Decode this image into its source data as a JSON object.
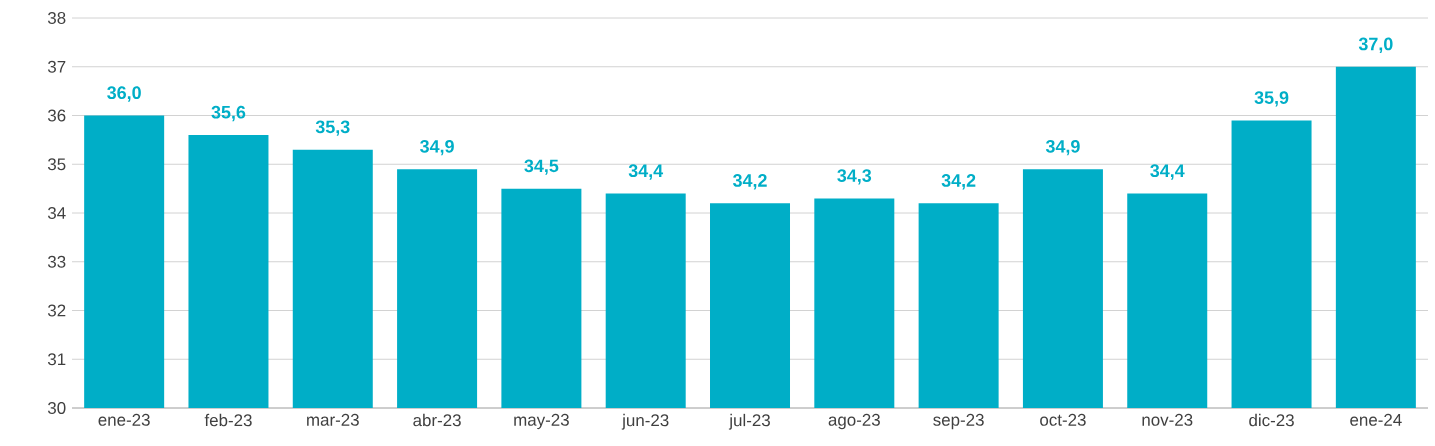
{
  "chart_data": {
    "type": "bar",
    "categories": [
      "ene-23",
      "feb-23",
      "mar-23",
      "abr-23",
      "may-23",
      "jun-23",
      "jul-23",
      "ago-23",
      "sep-23",
      "oct-23",
      "nov-23",
      "dic-23",
      "ene-24"
    ],
    "values": [
      36.0,
      35.6,
      35.3,
      34.9,
      34.5,
      34.4,
      34.2,
      34.3,
      34.2,
      34.9,
      34.4,
      35.9,
      37.0
    ],
    "value_labels": [
      "36,0",
      "35,6",
      "35,3",
      "34,9",
      "34,5",
      "34,4",
      "34,2",
      "34,3",
      "34,2",
      "34,9",
      "34,4",
      "35,9",
      "37,0"
    ],
    "color": "#00aec7",
    "ylim": [
      30,
      38
    ],
    "yticks": [
      30,
      31,
      32,
      33,
      34,
      35,
      36,
      37,
      38
    ],
    "grid": "y"
  }
}
